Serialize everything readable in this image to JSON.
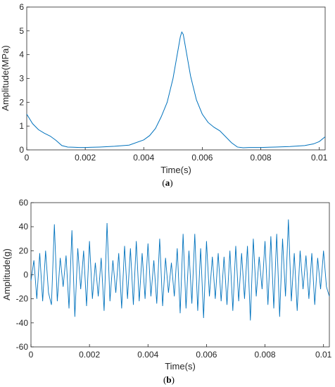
{
  "chart_data": [
    {
      "type": "line",
      "panel_label": {
        "open": "(",
        "letter": "a",
        "close": ")"
      },
      "title": "",
      "xlabel": "Time(s)",
      "ylabel": "Amplitude(MPa)",
      "xlim": [
        0,
        0.0102
      ],
      "ylim": [
        0,
        6
      ],
      "xticks": [
        0,
        0.002,
        0.004,
        0.006,
        0.008,
        0.01
      ],
      "xtick_labels": [
        "0",
        "0.002",
        "0.004",
        "0.006",
        "0.008",
        "0.01"
      ],
      "yticks": [
        0,
        1,
        2,
        3,
        4,
        5,
        6
      ],
      "ytick_labels": [
        "0",
        "1",
        "2",
        "3",
        "4",
        "5",
        "6"
      ],
      "grid": false,
      "series": [
        {
          "color": "#0072bd",
          "x": [
            0,
            0.0002,
            0.0004,
            0.0006,
            0.0008,
            0.001,
            0.0012,
            0.0014,
            0.0016,
            0.0018,
            0.002,
            0.0025,
            0.003,
            0.0035,
            0.004,
            0.0042,
            0.0044,
            0.0046,
            0.0048,
            0.005,
            0.0051,
            0.0052,
            0.00525,
            0.0053,
            0.00535,
            0.0054,
            0.0055,
            0.0056,
            0.0058,
            0.006,
            0.0062,
            0.0064,
            0.0066,
            0.0068,
            0.007,
            0.0072,
            0.0074,
            0.0076,
            0.008,
            0.0085,
            0.009,
            0.0095,
            0.0098,
            0.01,
            0.0102
          ],
          "y": [
            1.5,
            1.1,
            0.85,
            0.7,
            0.58,
            0.4,
            0.18,
            0.12,
            0.11,
            0.1,
            0.1,
            0.12,
            0.15,
            0.2,
            0.42,
            0.6,
            0.9,
            1.4,
            2.0,
            3.0,
            3.7,
            4.4,
            4.75,
            4.95,
            4.85,
            4.5,
            3.8,
            3.1,
            2.1,
            1.5,
            1.15,
            0.95,
            0.8,
            0.55,
            0.3,
            0.12,
            0.09,
            0.1,
            0.1,
            0.12,
            0.14,
            0.18,
            0.25,
            0.35,
            0.55
          ]
        }
      ]
    },
    {
      "type": "line",
      "panel_label": {
        "open": "(",
        "letter": "b",
        "close": ")"
      },
      "title": "",
      "xlabel": "Time(s)",
      "ylabel": "Amplitude(g)",
      "xlim": [
        0,
        0.0102
      ],
      "ylim": [
        -60,
        60
      ],
      "xticks": [
        0,
        0.002,
        0.004,
        0.006,
        0.008,
        0.01
      ],
      "xtick_labels": [
        "0",
        "0.002",
        "0.004",
        "0.006",
        "0.008",
        "0.01"
      ],
      "yticks": [
        -60,
        -40,
        -20,
        0,
        20,
        40,
        60
      ],
      "ytick_labels": [
        "-60",
        "-40",
        "-20",
        "0",
        "20",
        "40",
        "60"
      ],
      "grid": false,
      "series": [
        {
          "color": "#0072bd",
          "x": [
            0,
            0.0001,
            0.0002,
            0.0003,
            0.0004,
            0.0005,
            0.0006,
            0.0007,
            0.0008,
            0.0009,
            0.001,
            0.0011,
            0.0012,
            0.0013,
            0.0014,
            0.0015,
            0.0016,
            0.0017,
            0.0018,
            0.0019,
            0.002,
            0.0021,
            0.0022,
            0.0023,
            0.0024,
            0.0025,
            0.0026,
            0.0027,
            0.0028,
            0.0029,
            0.003,
            0.0031,
            0.0032,
            0.0033,
            0.0034,
            0.0035,
            0.0036,
            0.0037,
            0.0038,
            0.0039,
            0.004,
            0.0041,
            0.0042,
            0.0043,
            0.0044,
            0.0045,
            0.0046,
            0.0047,
            0.0048,
            0.0049,
            0.005,
            0.0051,
            0.0052,
            0.0053,
            0.0054,
            0.0055,
            0.0056,
            0.0057,
            0.0058,
            0.0059,
            0.006,
            0.0061,
            0.0062,
            0.0063,
            0.0064,
            0.0065,
            0.0066,
            0.0067,
            0.0068,
            0.0069,
            0.007,
            0.0071,
            0.0072,
            0.0073,
            0.0074,
            0.0075,
            0.0076,
            0.0077,
            0.0078,
            0.0079,
            0.008,
            0.0081,
            0.0082,
            0.0083,
            0.0084,
            0.0085,
            0.0086,
            0.0087,
            0.0088,
            0.0089,
            0.009,
            0.0091,
            0.0092,
            0.0093,
            0.0094,
            0.0095,
            0.0096,
            0.0097,
            0.0098,
            0.0099,
            0.01,
            0.0101,
            0.0102
          ],
          "y": [
            -5,
            12,
            -20,
            18,
            -22,
            20,
            -15,
            -25,
            42,
            -22,
            14,
            -10,
            16,
            -28,
            37,
            -35,
            22,
            -12,
            20,
            -26,
            28,
            -20,
            10,
            -18,
            14,
            -30,
            43,
            -22,
            12,
            -15,
            18,
            -28,
            24,
            -20,
            22,
            -25,
            28,
            -22,
            18,
            -20,
            26,
            -18,
            12,
            -24,
            30,
            -26,
            14,
            -15,
            10,
            -18,
            22,
            -32,
            34,
            -28,
            20,
            -24,
            34,
            -30,
            22,
            -36,
            28,
            -18,
            15,
            -20,
            18,
            -22,
            15,
            -25,
            20,
            -30,
            24,
            -22,
            18,
            -20,
            24,
            -38,
            30,
            -18,
            15,
            -12,
            28,
            -25,
            32,
            -28,
            34,
            -35,
            30,
            -18,
            46,
            -22,
            18,
            -30,
            20,
            -12,
            16,
            -20,
            18,
            -25,
            14,
            -12,
            20,
            -10,
            -18
          ]
        }
      ]
    }
  ]
}
